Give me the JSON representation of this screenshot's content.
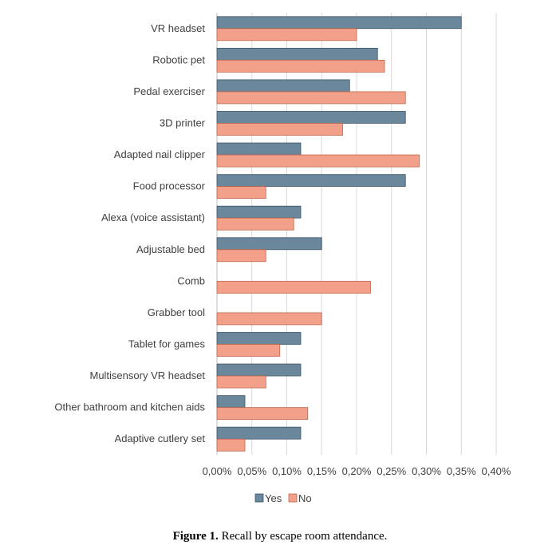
{
  "chart_data": {
    "type": "bar",
    "orientation": "horizontal",
    "categories": [
      "VR headset",
      "Robotic pet",
      "Pedal exerciser",
      "3D printer",
      "Adapted nail clipper",
      "Food processor",
      "Alexa (voice assistant)",
      "Adjustable bed",
      "Comb",
      "Grabber tool",
      "Tablet for games",
      "Multisensory VR headset",
      "Other bathroom and kitchen aids",
      "Adaptive cutlery set"
    ],
    "series": [
      {
        "name": "Yes",
        "color": "#6b879c",
        "values": [
          0.35,
          0.23,
          0.19,
          0.27,
          0.12,
          0.27,
          0.12,
          0.15,
          0,
          0,
          0.12,
          0.12,
          0.04,
          0.12
        ]
      },
      {
        "name": "No",
        "color": "#f2a08a",
        "values": [
          0.2,
          0.24,
          0.27,
          0.18,
          0.29,
          0.07,
          0.11,
          0.07,
          0.22,
          0.15,
          0.09,
          0.07,
          0.13,
          0.04
        ]
      }
    ],
    "xlim": [
      0,
      0.4
    ],
    "x_ticks": [
      0,
      0.05,
      0.1,
      0.15,
      0.2,
      0.25,
      0.3,
      0.35,
      0.4
    ],
    "x_tick_labels": [
      "0,00%",
      "0,05%",
      "0,10%",
      "0,15%",
      "0,20%",
      "0,25%",
      "0,30%",
      "0,35%",
      "0,40%"
    ],
    "grid": true,
    "legend_position": "bottom"
  },
  "caption": {
    "label": "Figure 1.",
    "text": "Recall by escape room attendance."
  }
}
